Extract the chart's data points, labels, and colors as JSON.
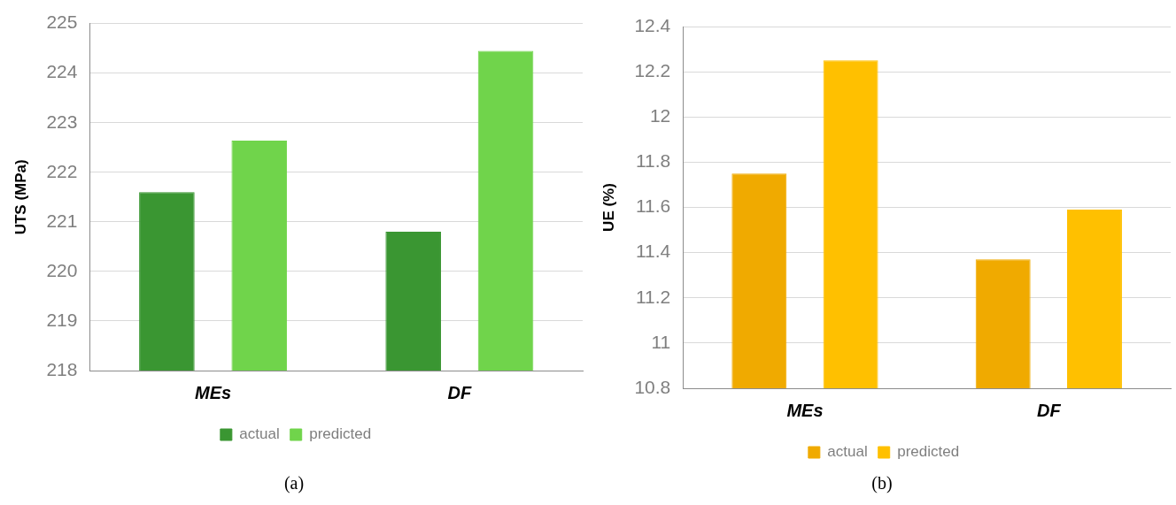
{
  "chart_data": [
    {
      "type": "bar",
      "ylabel": "UTS (MPa)",
      "categories": [
        "MEs",
        "DF"
      ],
      "series": [
        {
          "name": "actual",
          "color": "#3a9632",
          "values": [
            221.6,
            220.8
          ]
        },
        {
          "name": "predicted",
          "color": "#70d44b",
          "values": [
            222.64,
            224.45
          ]
        }
      ],
      "ylim": [
        218,
        225
      ],
      "yticks": [
        218,
        219,
        220,
        221,
        222,
        223,
        224,
        225
      ],
      "grid": "y",
      "legend": "bottom",
      "annotations": [
        "(a)"
      ]
    },
    {
      "type": "bar",
      "ylabel": "UE (%)",
      "categories": [
        "MEs",
        "DF"
      ],
      "series": [
        {
          "name": "actual",
          "color": "#f0aa00",
          "values": [
            11.75,
            11.37
          ]
        },
        {
          "name": "predicted",
          "color": "#ffc000",
          "values": [
            12.25,
            11.59
          ]
        }
      ],
      "ylim": [
        10.8,
        12.4
      ],
      "yticks": [
        10.8,
        11,
        11.2,
        11.4,
        11.6,
        11.8,
        12,
        12.2,
        12.4
      ],
      "grid": "y",
      "legend": "bottom",
      "annotations": [
        "(b)"
      ]
    }
  ]
}
